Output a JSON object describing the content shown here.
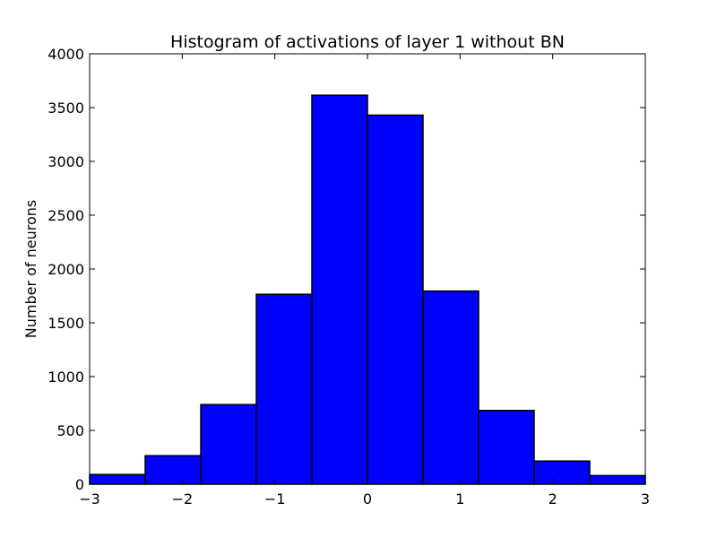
{
  "chart_data": {
    "type": "bar",
    "title": "Histogram of activations of layer 1  without BN",
    "xlabel": "",
    "ylabel": "Number of neurons",
    "xlim": [
      -3,
      3
    ],
    "ylim": [
      0,
      4000
    ],
    "grid": false,
    "bins": [
      {
        "x0": -3.0,
        "x1": -2.4,
        "value": 90
      },
      {
        "x0": -2.4,
        "x1": -1.8,
        "value": 265
      },
      {
        "x0": -1.8,
        "x1": -1.2,
        "value": 740
      },
      {
        "x0": -1.2,
        "x1": -0.6,
        "value": 1765
      },
      {
        "x0": -0.6,
        "x1": 0.0,
        "value": 3615
      },
      {
        "x0": 0.0,
        "x1": 0.6,
        "value": 3430
      },
      {
        "x0": 0.6,
        "x1": 1.2,
        "value": 1795
      },
      {
        "x0": 1.2,
        "x1": 1.8,
        "value": 685
      },
      {
        "x0": 1.8,
        "x1": 2.4,
        "value": 215
      },
      {
        "x0": 2.4,
        "x1": 3.0,
        "value": 80
      }
    ],
    "x_ticks": [
      {
        "value": -3,
        "label": "−3"
      },
      {
        "value": -2,
        "label": "−2"
      },
      {
        "value": -1,
        "label": "−1"
      },
      {
        "value": 0,
        "label": "0"
      },
      {
        "value": 1,
        "label": "1"
      },
      {
        "value": 2,
        "label": "2"
      },
      {
        "value": 3,
        "label": "3"
      }
    ],
    "y_ticks": [
      {
        "value": 0,
        "label": "0"
      },
      {
        "value": 500,
        "label": "500"
      },
      {
        "value": 1000,
        "label": "1000"
      },
      {
        "value": 1500,
        "label": "1500"
      },
      {
        "value": 2000,
        "label": "2000"
      },
      {
        "value": 2500,
        "label": "2500"
      },
      {
        "value": 3000,
        "label": "3000"
      },
      {
        "value": 3500,
        "label": "3500"
      },
      {
        "value": 4000,
        "label": "4000"
      }
    ],
    "colors": {
      "bar_fill": "#0000ff",
      "bar_edge": "#000000",
      "axes": "#000000",
      "background": "#ffffff"
    }
  }
}
